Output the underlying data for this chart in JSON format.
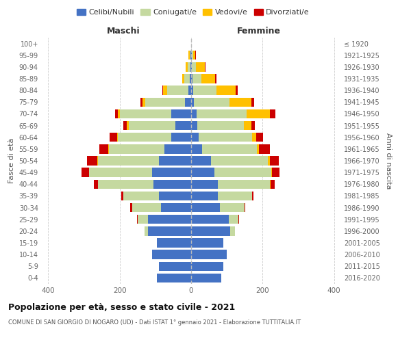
{
  "age_groups": [
    "0-4",
    "5-9",
    "10-14",
    "15-19",
    "20-24",
    "25-29",
    "30-34",
    "35-39",
    "40-44",
    "45-49",
    "50-54",
    "55-59",
    "60-64",
    "65-69",
    "70-74",
    "75-79",
    "80-84",
    "85-89",
    "90-94",
    "95-99",
    "100+"
  ],
  "birth_years": [
    "2016-2020",
    "2011-2015",
    "2006-2010",
    "2001-2005",
    "1996-2000",
    "1991-1995",
    "1986-1990",
    "1981-1985",
    "1976-1980",
    "1971-1975",
    "1966-1970",
    "1961-1965",
    "1956-1960",
    "1951-1955",
    "1946-1950",
    "1941-1945",
    "1936-1940",
    "1931-1935",
    "1926-1930",
    "1921-1925",
    "≤ 1920"
  ],
  "male": {
    "celibi": [
      95,
      90,
      110,
      95,
      120,
      120,
      85,
      90,
      105,
      110,
      90,
      75,
      55,
      45,
      55,
      18,
      8,
      4,
      2,
      1,
      0
    ],
    "coniugati": [
      0,
      0,
      0,
      0,
      10,
      30,
      80,
      100,
      155,
      175,
      170,
      155,
      150,
      130,
      145,
      110,
      60,
      15,
      8,
      3,
      0
    ],
    "vedovi": [
      0,
      0,
      0,
      0,
      0,
      0,
      0,
      0,
      1,
      1,
      2,
      2,
      3,
      5,
      5,
      8,
      10,
      5,
      5,
      3,
      0
    ],
    "divorziati": [
      0,
      0,
      0,
      0,
      0,
      2,
      5,
      5,
      12,
      20,
      30,
      25,
      20,
      10,
      8,
      5,
      2,
      0,
      0,
      0,
      0
    ]
  },
  "female": {
    "nubili": [
      85,
      90,
      100,
      90,
      110,
      105,
      80,
      75,
      75,
      65,
      55,
      30,
      22,
      18,
      15,
      8,
      5,
      3,
      2,
      1,
      0
    ],
    "coniugate": [
      0,
      0,
      0,
      0,
      12,
      28,
      70,
      95,
      145,
      160,
      160,
      155,
      148,
      130,
      140,
      100,
      65,
      25,
      12,
      5,
      0
    ],
    "vedove": [
      0,
      0,
      0,
      0,
      0,
      0,
      0,
      0,
      2,
      2,
      5,
      5,
      12,
      20,
      65,
      60,
      55,
      40,
      25,
      5,
      0
    ],
    "divorziate": [
      0,
      0,
      0,
      0,
      0,
      2,
      2,
      5,
      12,
      20,
      25,
      30,
      20,
      10,
      15,
      8,
      5,
      2,
      2,
      2,
      0
    ]
  },
  "colors": {
    "celibi": "#4472c4",
    "coniugati": "#c5d9a0",
    "vedovi": "#ffc000",
    "divorziati": "#cc0000"
  },
  "title": "Popolazione per età, sesso e stato civile - 2021",
  "subtitle": "COMUNE DI SAN GIORGIO DI NOGARO (UD) - Dati ISTAT 1° gennaio 2021 - Elaborazione TUTTITALIA.IT",
  "xlabel_left": "Maschi",
  "xlabel_right": "Femmine",
  "ylabel_left": "Fasce di età",
  "ylabel_right": "Anni di nascita",
  "xlim": 420,
  "legend_labels": [
    "Celibi/Nubili",
    "Coniugati/e",
    "Vedovi/e",
    "Divorziati/e"
  ],
  "background_color": "#ffffff",
  "grid_color": "#cccccc"
}
